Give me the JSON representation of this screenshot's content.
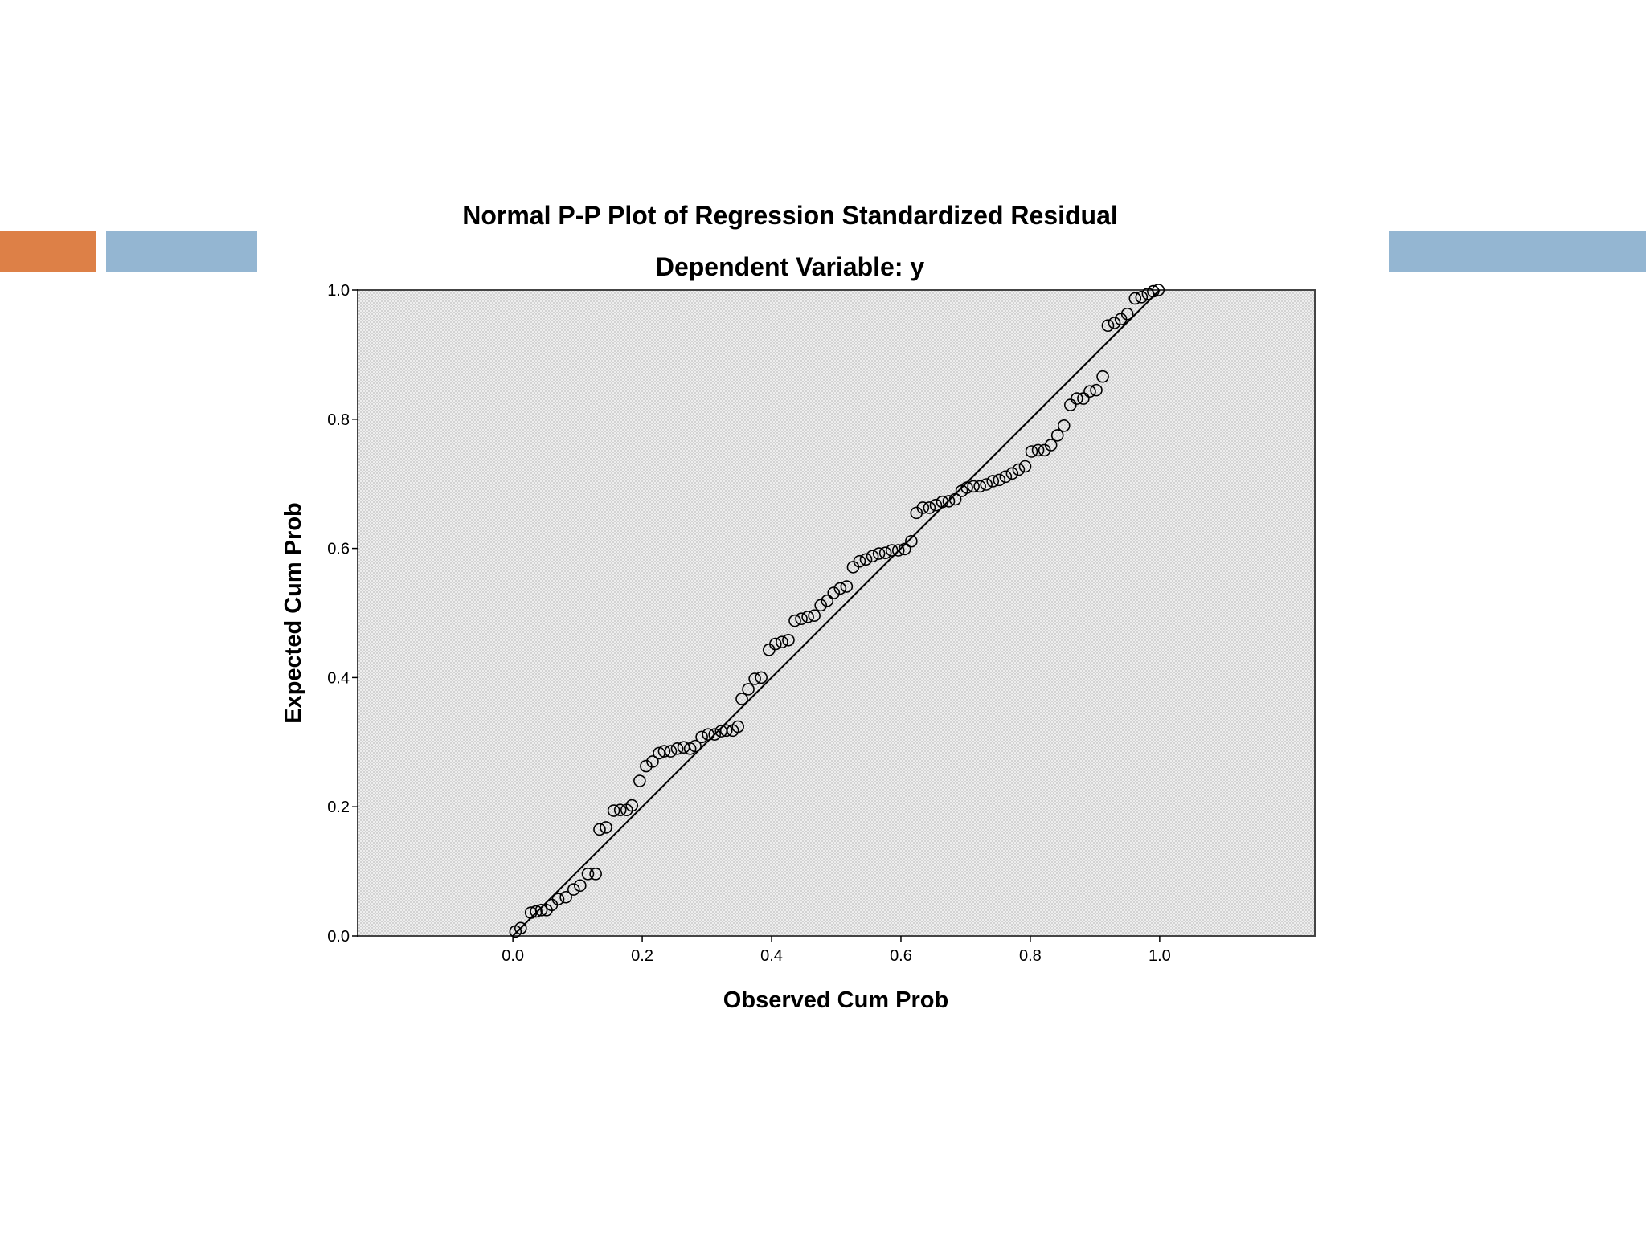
{
  "slide": {
    "accent_colors": {
      "orange": "#dd8047",
      "blue": "#94b6d2"
    }
  },
  "chart_data": {
    "type": "scatter",
    "title": "Normal P-P Plot of Regression Standardized Residual",
    "subtitle": "Dependent Variable: y",
    "xlabel": "Observed Cum Prob",
    "ylabel": "Expected Cum Prob",
    "xlim": [
      -0.24,
      1.24
    ],
    "ylim": [
      0,
      1.0
    ],
    "xticks": [
      "0.0",
      "0.2",
      "0.4",
      "0.6",
      "0.8",
      "1.0"
    ],
    "xtick_values": [
      0,
      0.2,
      0.4,
      0.6,
      0.8,
      1.0
    ],
    "yticks": [
      "0.0",
      "0.2",
      "0.4",
      "0.6",
      "0.8",
      "1.0"
    ],
    "ytick_values": [
      0,
      0.2,
      0.4,
      0.6,
      0.8,
      1.0
    ],
    "grid": false,
    "background": "#e6e6e6",
    "reference_line": {
      "from": [
        0,
        0
      ],
      "to": [
        1,
        1
      ]
    },
    "points": [
      [
        0.004,
        0.007
      ],
      [
        0.012,
        0.012
      ],
      [
        0.028,
        0.036
      ],
      [
        0.036,
        0.038
      ],
      [
        0.044,
        0.04
      ],
      [
        0.052,
        0.04
      ],
      [
        0.06,
        0.048
      ],
      [
        0.07,
        0.057
      ],
      [
        0.082,
        0.06
      ],
      [
        0.094,
        0.072
      ],
      [
        0.104,
        0.078
      ],
      [
        0.116,
        0.096
      ],
      [
        0.128,
        0.096
      ],
      [
        0.134,
        0.165
      ],
      [
        0.144,
        0.168
      ],
      [
        0.156,
        0.194
      ],
      [
        0.166,
        0.195
      ],
      [
        0.176,
        0.195
      ],
      [
        0.184,
        0.202
      ],
      [
        0.196,
        0.24
      ],
      [
        0.206,
        0.263
      ],
      [
        0.216,
        0.27
      ],
      [
        0.226,
        0.283
      ],
      [
        0.234,
        0.286
      ],
      [
        0.244,
        0.286
      ],
      [
        0.254,
        0.29
      ],
      [
        0.264,
        0.292
      ],
      [
        0.274,
        0.29
      ],
      [
        0.282,
        0.294
      ],
      [
        0.292,
        0.308
      ],
      [
        0.302,
        0.312
      ],
      [
        0.312,
        0.312
      ],
      [
        0.322,
        0.317
      ],
      [
        0.33,
        0.318
      ],
      [
        0.34,
        0.318
      ],
      [
        0.348,
        0.324
      ],
      [
        0.354,
        0.367
      ],
      [
        0.364,
        0.382
      ],
      [
        0.374,
        0.398
      ],
      [
        0.384,
        0.4
      ],
      [
        0.396,
        0.443
      ],
      [
        0.406,
        0.452
      ],
      [
        0.416,
        0.455
      ],
      [
        0.426,
        0.458
      ],
      [
        0.436,
        0.488
      ],
      [
        0.446,
        0.491
      ],
      [
        0.456,
        0.494
      ],
      [
        0.466,
        0.496
      ],
      [
        0.476,
        0.512
      ],
      [
        0.486,
        0.519
      ],
      [
        0.496,
        0.531
      ],
      [
        0.506,
        0.538
      ],
      [
        0.516,
        0.541
      ],
      [
        0.526,
        0.571
      ],
      [
        0.536,
        0.58
      ],
      [
        0.546,
        0.583
      ],
      [
        0.556,
        0.588
      ],
      [
        0.566,
        0.592
      ],
      [
        0.576,
        0.593
      ],
      [
        0.586,
        0.597
      ],
      [
        0.596,
        0.597
      ],
      [
        0.606,
        0.599
      ],
      [
        0.616,
        0.611
      ],
      [
        0.624,
        0.655
      ],
      [
        0.634,
        0.663
      ],
      [
        0.644,
        0.663
      ],
      [
        0.654,
        0.667
      ],
      [
        0.664,
        0.672
      ],
      [
        0.674,
        0.673
      ],
      [
        0.684,
        0.676
      ],
      [
        0.694,
        0.689
      ],
      [
        0.702,
        0.694
      ],
      [
        0.712,
        0.696
      ],
      [
        0.722,
        0.696
      ],
      [
        0.732,
        0.699
      ],
      [
        0.742,
        0.704
      ],
      [
        0.752,
        0.706
      ],
      [
        0.762,
        0.711
      ],
      [
        0.772,
        0.716
      ],
      [
        0.782,
        0.722
      ],
      [
        0.792,
        0.727
      ],
      [
        0.802,
        0.75
      ],
      [
        0.812,
        0.752
      ],
      [
        0.822,
        0.752
      ],
      [
        0.832,
        0.76
      ],
      [
        0.842,
        0.775
      ],
      [
        0.852,
        0.79
      ],
      [
        0.862,
        0.822
      ],
      [
        0.872,
        0.832
      ],
      [
        0.882,
        0.832
      ],
      [
        0.892,
        0.843
      ],
      [
        0.902,
        0.845
      ],
      [
        0.912,
        0.866
      ],
      [
        0.92,
        0.945
      ],
      [
        0.93,
        0.949
      ],
      [
        0.94,
        0.955
      ],
      [
        0.95,
        0.963
      ],
      [
        0.962,
        0.987
      ],
      [
        0.972,
        0.989
      ],
      [
        0.982,
        0.994
      ],
      [
        0.99,
        0.998
      ],
      [
        0.998,
        1.0
      ]
    ]
  }
}
